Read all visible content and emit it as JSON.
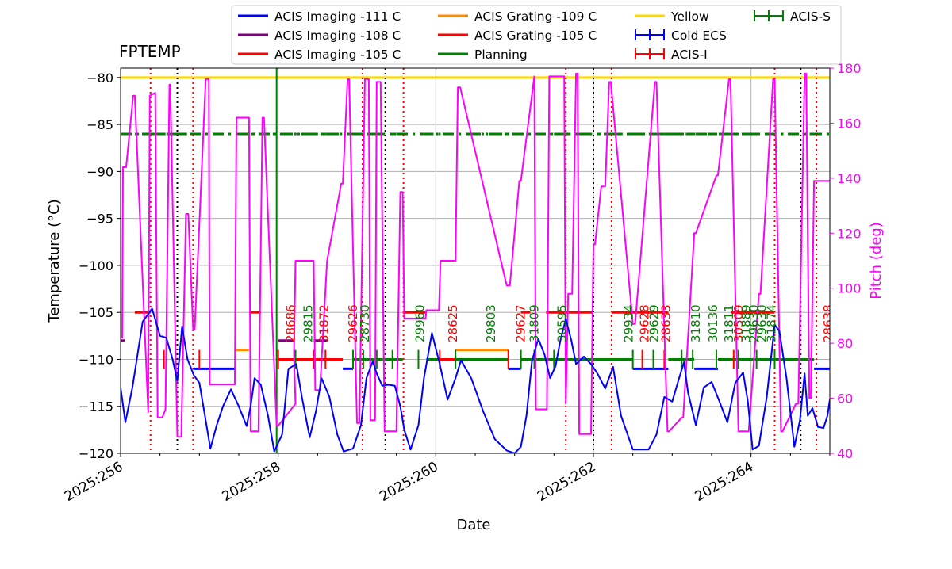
{
  "chart_data": {
    "type": "line",
    "title": "FPTEMP",
    "xlabel": "Date",
    "ylabel": "Temperature ($^\\circ$C)",
    "ylabel_display": "Temperature (°C)",
    "y2label": "Pitch (deg)",
    "xlim": [
      256.0,
      265.0
    ],
    "ylim": [
      -120,
      -79
    ],
    "y2lim": [
      40,
      180
    ],
    "xticks": [
      256,
      258,
      260,
      262,
      264
    ],
    "xtick_labels": [
      "2025:256",
      "2025:258",
      "2025:260",
      "2025:262",
      "2025:264"
    ],
    "yticks": [
      -80,
      -85,
      -90,
      -95,
      -100,
      -105,
      -110,
      -115,
      -120
    ],
    "y2ticks": [
      40,
      60,
      80,
      100,
      120,
      140,
      160,
      180
    ],
    "grid": true,
    "legend_position": "top",
    "colors": {
      "fptemp": "#0000ff",
      "pitch": "#ff00ff",
      "yellow": "#ffd700",
      "planning": "#008000",
      "red": "#ff0000",
      "purple": "#800080",
      "orange": "#ff8c00",
      "now": "#000000"
    },
    "legend": [
      {
        "label": "ACIS Imaging -111 C",
        "color": "#0000ff",
        "kind": "line"
      },
      {
        "label": "ACIS Imaging -108 C",
        "color": "#800080",
        "kind": "line"
      },
      {
        "label": "ACIS Imaging -105 C",
        "color": "#ff0000",
        "kind": "line"
      },
      {
        "label": "ACIS Grating -109 C",
        "color": "#ff8c00",
        "kind": "line"
      },
      {
        "label": "ACIS Grating -105 C",
        "color": "#ff0000",
        "kind": "line"
      },
      {
        "label": "Planning",
        "color": "#008000",
        "kind": "line"
      },
      {
        "label": "Yellow",
        "color": "#ffd700",
        "kind": "line"
      },
      {
        "label": "Cold ECS",
        "color": "#0000ff",
        "kind": "errorbar"
      },
      {
        "label": "ACIS-I",
        "color": "#ff0000",
        "kind": "errorbar"
      },
      {
        "label": "ACIS-S",
        "color": "#008000",
        "kind": "errorbar"
      }
    ],
    "series": [
      {
        "name": "FPTEMP",
        "axis": "left",
        "color": "#0000ff",
        "x": [
          256.0,
          256.06,
          256.15,
          256.28,
          256.4,
          256.5,
          256.58,
          256.66,
          256.72,
          256.78,
          256.85,
          256.93,
          257.0,
          257.07,
          257.14,
          257.22,
          257.3,
          257.4,
          257.5,
          257.6,
          257.65,
          257.7,
          257.78,
          257.87,
          257.95,
          258.05,
          258.13,
          258.23,
          258.3,
          258.4,
          258.48,
          258.55,
          258.65,
          258.75,
          258.83,
          258.95,
          259.05,
          259.12,
          259.2,
          259.25,
          259.32,
          259.4,
          259.48,
          259.55,
          259.6,
          259.68,
          259.78,
          259.85,
          259.95,
          260.05,
          260.15,
          260.25,
          260.32,
          260.45,
          260.6,
          260.75,
          260.9,
          261.0,
          261.08,
          261.15,
          261.22,
          261.3,
          261.38,
          261.45,
          261.52,
          261.58,
          261.65,
          261.72,
          261.78,
          261.88,
          261.97,
          262.05,
          262.15,
          262.25,
          262.35,
          262.5,
          262.6,
          262.7,
          262.8,
          262.9,
          263.0,
          263.08,
          263.15,
          263.2,
          263.3,
          263.4,
          263.5,
          263.6,
          263.7,
          263.8,
          263.9,
          263.96,
          264.02,
          264.1,
          264.2,
          264.3,
          264.36,
          264.45,
          264.55,
          264.62,
          264.68,
          264.72,
          264.78,
          264.85,
          264.92,
          264.97,
          265.0
        ],
        "y": [
          -113,
          -116.7,
          -113,
          -106,
          -104.6,
          -107.5,
          -107.7,
          -110,
          -112.3,
          -106.5,
          -110,
          -111.7,
          -112.5,
          -116,
          -119.5,
          -117,
          -115,
          -113.2,
          -115,
          -117.1,
          -115,
          -112,
          -112.7,
          -116,
          -119.8,
          -118,
          -111,
          -110.5,
          -114,
          -118.3,
          -115.5,
          -112,
          -114,
          -118,
          -119.8,
          -119.5,
          -117,
          -112,
          -110.2,
          -111.5,
          -112.8,
          -112.7,
          -112.8,
          -115,
          -117.5,
          -119.6,
          -117,
          -112,
          -107.2,
          -110.5,
          -114.3,
          -112,
          -110.1,
          -112,
          -115.5,
          -118.5,
          -119.7,
          -120,
          -119.3,
          -116,
          -110.2,
          -107.8,
          -109.5,
          -112,
          -110.7,
          -108,
          -105.7,
          -108,
          -110.5,
          -109.7,
          -110.5,
          -111.5,
          -113.1,
          -110.8,
          -116,
          -119.6,
          -119.6,
          -119.6,
          -118,
          -114,
          -114.5,
          -112.2,
          -110.3,
          -113.5,
          -117,
          -113,
          -112.4,
          -114.5,
          -116.7,
          -112.5,
          -111.4,
          -114.5,
          -119.6,
          -119.2,
          -114,
          -106.3,
          -107,
          -112,
          -119.3,
          -116.5,
          -111.5,
          -116,
          -115.2,
          -117.2,
          -117.3,
          -116,
          -114.3
        ]
      },
      {
        "name": "Pitch",
        "axis": "right",
        "color": "#ff00ff",
        "x": [
          256.0,
          256.02,
          256.03,
          256.07,
          256.16,
          256.18,
          256.35,
          256.37,
          256.44,
          256.47,
          256.5,
          256.53,
          256.57,
          256.62,
          256.63,
          256.72,
          256.74,
          256.77,
          256.83,
          256.86,
          256.92,
          256.94,
          257.08,
          257.12,
          257.13,
          257.45,
          257.47,
          257.63,
          257.65,
          257.75,
          257.8,
          257.82,
          257.98,
          258.0,
          258.22,
          258.2,
          258.22,
          258.45,
          258.47,
          258.53,
          258.62,
          258.8,
          258.82,
          258.88,
          258.9,
          259.0,
          259.03,
          259.1,
          259.15,
          259.17,
          259.23,
          259.25,
          259.3,
          259.35,
          259.5,
          259.55,
          259.58,
          259.6,
          259.87,
          259.88,
          260.04,
          260.06,
          260.25,
          260.28,
          260.31,
          260.9,
          260.94,
          261.06,
          261.08,
          261.25,
          261.27,
          261.41,
          261.44,
          261.63,
          261.65,
          261.68,
          261.73,
          261.78,
          261.8,
          261.82,
          261.95,
          261.97,
          262.0,
          262.02,
          262.1,
          262.15,
          262.2,
          262.22,
          262.5,
          262.53,
          262.78,
          262.8,
          262.94,
          262.96,
          263.12,
          263.14,
          263.28,
          263.3,
          263.56,
          263.58,
          263.72,
          263.74,
          263.84,
          263.86,
          263.97,
          264.1,
          264.12,
          264.28,
          264.3,
          264.38,
          264.4,
          264.57,
          264.6,
          264.68,
          264.7,
          264.74,
          264.76,
          264.8,
          264.82,
          264.86,
          264.88,
          265.0
        ],
        "y": [
          82,
          82,
          144,
          144,
          170,
          170,
          55,
          170,
          171,
          53,
          53,
          53,
          56,
          174,
          174,
          46,
          46,
          46,
          127,
          127,
          85,
          85,
          176,
          176,
          65,
          65,
          162,
          162,
          48,
          48,
          162,
          162,
          50,
          50,
          58,
          76,
          110,
          110,
          63,
          63,
          110,
          138,
          138,
          176,
          176,
          51,
          51,
          176,
          176,
          52,
          52,
          175,
          175,
          48,
          48,
          135,
          135,
          89,
          89,
          92,
          92,
          110,
          110,
          173,
          173,
          101,
          101,
          139,
          139,
          177,
          56,
          56,
          177,
          177,
          58,
          98,
          98,
          178,
          178,
          47,
          47,
          47,
          116,
          116,
          137,
          137,
          175,
          175,
          87,
          87,
          175,
          175,
          48,
          48,
          53,
          53,
          120,
          120,
          141,
          141,
          176,
          176,
          48,
          48,
          48,
          98,
          98,
          176,
          176,
          48,
          48,
          58,
          58,
          178,
          178,
          60,
          60,
          139,
          139,
          139,
          139,
          139
        ]
      }
    ],
    "horizontal_lines": [
      {
        "name": "yellow-limit",
        "y": -80,
        "color": "#ffd700"
      },
      {
        "name": "planning-limit",
        "y": -86,
        "color": "#008000",
        "style": "dashdot"
      }
    ],
    "vertical_lines": [
      {
        "name": "green-solid",
        "x": 257.98,
        "color": "#008000",
        "style": "solid"
      },
      {
        "name": "black-dotted",
        "x": 256.72,
        "color": "#000000",
        "style": "dotted"
      },
      {
        "name": "black-dotted",
        "x": 259.36,
        "color": "#000000",
        "style": "dotted"
      },
      {
        "name": "black-dotted",
        "x": 262.0,
        "color": "#000000",
        "style": "dotted"
      },
      {
        "name": "black-dotted",
        "x": 264.63,
        "color": "#000000",
        "style": "dotted"
      },
      {
        "name": "red-dotted",
        "x": 256.38,
        "color": "#ff0000",
        "style": "dotted"
      },
      {
        "name": "red-dotted",
        "x": 256.92,
        "color": "#ff0000",
        "style": "dotted"
      },
      {
        "name": "red-dotted",
        "x": 259.07,
        "color": "#ff0000",
        "style": "dotted"
      },
      {
        "name": "red-dotted",
        "x": 259.59,
        "color": "#ff0000",
        "style": "dotted"
      },
      {
        "name": "red-dotted",
        "x": 261.65,
        "color": "#ff0000",
        "style": "dotted"
      },
      {
        "name": "red-dotted",
        "x": 262.23,
        "color": "#ff0000",
        "style": "dotted"
      },
      {
        "name": "red-dotted",
        "x": 264.3,
        "color": "#ff0000",
        "style": "dotted"
      },
      {
        "name": "red-dotted",
        "x": 264.83,
        "color": "#ff0000",
        "style": "dotted"
      }
    ],
    "limit_segments": [
      {
        "x1": 256.0,
        "x2": 256.05,
        "y": -108,
        "color": "#800080"
      },
      {
        "x1": 256.18,
        "x2": 256.38,
        "y": -105,
        "color": "#ff0000"
      },
      {
        "x1": 256.92,
        "x2": 257.45,
        "y": -111,
        "color": "#0000ff"
      },
      {
        "x1": 257.45,
        "x2": 257.63,
        "y": -109,
        "color": "#ff8c00"
      },
      {
        "x1": 257.63,
        "x2": 257.78,
        "y": -105,
        "color": "#ff0000"
      },
      {
        "x1": 258.0,
        "x2": 258.2,
        "y": -108,
        "color": "#800080"
      },
      {
        "x1": 258.0,
        "x2": 258.45,
        "y": -110,
        "color": "#ff0000"
      },
      {
        "x1": 258.45,
        "x2": 258.62,
        "y": -108,
        "color": "#800080"
      },
      {
        "x1": 258.45,
        "x2": 258.82,
        "y": -110,
        "color": "#ff0000"
      },
      {
        "x1": 258.82,
        "x2": 258.95,
        "y": -111,
        "color": "#0000ff"
      },
      {
        "x1": 258.95,
        "x2": 259.58,
        "y": -110,
        "color": "#008000"
      },
      {
        "x1": 259.58,
        "x2": 259.88,
        "y": -105,
        "color": "#ff0000"
      },
      {
        "x1": 259.88,
        "x2": 260.05,
        "y": -110,
        "color": "#008000"
      },
      {
        "x1": 260.05,
        "x2": 260.25,
        "y": -110,
        "color": "#ff0000"
      },
      {
        "x1": 260.25,
        "x2": 260.92,
        "y": -109,
        "color": "#ff8c00"
      },
      {
        "x1": 260.25,
        "x2": 260.92,
        "y": -110,
        "color": "#008000"
      },
      {
        "x1": 260.92,
        "x2": 261.08,
        "y": -111,
        "color": "#0000ff"
      },
      {
        "x1": 261.08,
        "x2": 261.4,
        "y": -110,
        "color": "#008000"
      },
      {
        "x1": 261.08,
        "x2": 261.2,
        "y": -105,
        "color": "#ff0000"
      },
      {
        "x1": 261.4,
        "x2": 262.0,
        "y": -105,
        "color": "#ff0000"
      },
      {
        "x1": 261.4,
        "x2": 262.0,
        "y": -110,
        "color": "#008000"
      },
      {
        "x1": 262.0,
        "x2": 262.5,
        "y": -110,
        "color": "#008000"
      },
      {
        "x1": 262.23,
        "x2": 262.95,
        "y": -105,
        "color": "#ff0000"
      },
      {
        "x1": 262.5,
        "x2": 262.95,
        "y": -111,
        "color": "#0000ff"
      },
      {
        "x1": 262.95,
        "x2": 263.28,
        "y": -110,
        "color": "#008000"
      },
      {
        "x1": 263.28,
        "x2": 263.58,
        "y": -111,
        "color": "#0000ff"
      },
      {
        "x1": 263.58,
        "x2": 264.05,
        "y": -110,
        "color": "#008000"
      },
      {
        "x1": 263.75,
        "x2": 264.3,
        "y": -105,
        "color": "#ff0000"
      },
      {
        "x1": 264.05,
        "x2": 264.8,
        "y": -110,
        "color": "#008000"
      },
      {
        "x1": 264.8,
        "x2": 265.0,
        "y": -111,
        "color": "#0000ff"
      }
    ],
    "planning_dashdot": [
      {
        "x1": 256.0,
        "x2": 256.45
      },
      {
        "x1": 256.45,
        "x2": 256.95
      },
      {
        "x1": 257.5,
        "x2": 257.75
      },
      {
        "x1": 257.75,
        "x2": 258.6
      },
      {
        "x1": 258.6,
        "x2": 259.5
      },
      {
        "x1": 259.85,
        "x2": 260.15
      },
      {
        "x1": 260.45,
        "x2": 261.5
      },
      {
        "x1": 261.5,
        "x2": 262.1
      },
      {
        "x1": 262.25,
        "x2": 262.9
      },
      {
        "x1": 262.9,
        "x2": 263.3
      },
      {
        "x1": 263.45,
        "x2": 264.2
      },
      {
        "x1": 264.2,
        "x2": 264.85
      }
    ],
    "obsid_ticks": [
      {
        "x": 256.55,
        "color": "#ff0000"
      },
      {
        "x": 257.0,
        "color": "#ff0000"
      },
      {
        "x": 258.0,
        "color": "#ff0000"
      },
      {
        "x": 258.22,
        "color": "#008000"
      },
      {
        "x": 258.45,
        "color": "#ff0000"
      },
      {
        "x": 258.6,
        "color": "#ff0000"
      },
      {
        "x": 258.95,
        "color": "#008000"
      },
      {
        "x": 259.08,
        "color": "#008000"
      },
      {
        "x": 259.25,
        "color": "#008000"
      },
      {
        "x": 259.45,
        "color": "#008000"
      },
      {
        "x": 259.78,
        "color": "#008000"
      },
      {
        "x": 260.05,
        "color": "#ff0000"
      },
      {
        "x": 260.25,
        "color": "#008000"
      },
      {
        "x": 260.92,
        "color": "#ff0000"
      },
      {
        "x": 261.08,
        "color": "#008000"
      },
      {
        "x": 261.25,
        "color": "#008000"
      },
      {
        "x": 261.5,
        "color": "#008000"
      },
      {
        "x": 262.5,
        "color": "#008000"
      },
      {
        "x": 262.62,
        "color": "#ff0000"
      },
      {
        "x": 262.76,
        "color": "#008000"
      },
      {
        "x": 262.9,
        "color": "#ff0000"
      },
      {
        "x": 263.12,
        "color": "#008000"
      },
      {
        "x": 263.26,
        "color": "#008000"
      },
      {
        "x": 263.56,
        "color": "#008000"
      },
      {
        "x": 263.78,
        "color": "#ff0000"
      },
      {
        "x": 263.84,
        "color": "#008000"
      },
      {
        "x": 264.07,
        "color": "#008000"
      },
      {
        "x": 264.3,
        "color": "#008000"
      }
    ],
    "obsid_labels": [
      {
        "text": "28686",
        "x": 258.16,
        "color": "#ff0000"
      },
      {
        "text": "29815",
        "x": 258.38,
        "color": "#008000"
      },
      {
        "text": "31872",
        "x": 258.58,
        "color": "#ff0000"
      },
      {
        "text": "29626",
        "x": 258.95,
        "color": "#ff0000"
      },
      {
        "text": "28730",
        "x": 259.1,
        "color": "#008000"
      },
      {
        "text": "29960",
        "x": 259.8,
        "color": "#008000"
      },
      {
        "text": "28625",
        "x": 260.22,
        "color": "#ff0000"
      },
      {
        "text": "29803",
        "x": 260.7,
        "color": "#008000"
      },
      {
        "text": "29627",
        "x": 261.08,
        "color": "#ff0000"
      },
      {
        "text": "31809",
        "x": 261.25,
        "color": "#008000"
      },
      {
        "text": "30595",
        "x": 261.6,
        "color": "#008000"
      },
      {
        "text": "29934",
        "x": 262.45,
        "color": "#008000"
      },
      {
        "text": "29628",
        "x": 262.65,
        "color": "#ff0000"
      },
      {
        "text": "29629",
        "x": 262.77,
        "color": "#008000"
      },
      {
        "text": "28633",
        "x": 262.92,
        "color": "#ff0000"
      },
      {
        "text": "31810",
        "x": 263.3,
        "color": "#008000"
      },
      {
        "text": "30136",
        "x": 263.52,
        "color": "#008000"
      },
      {
        "text": "31811",
        "x": 263.72,
        "color": "#008000"
      },
      {
        "text": "30509",
        "x": 263.84,
        "color": "#ff0000"
      },
      {
        "text": "31889",
        "x": 263.94,
        "color": "#008000"
      },
      {
        "text": "29630",
        "x": 264.04,
        "color": "#008000"
      },
      {
        "text": "29630",
        "x": 264.14,
        "color": "#008000"
      },
      {
        "text": "31874",
        "x": 264.26,
        "color": "#008000"
      },
      {
        "text": "28638",
        "x": 264.98,
        "color": "#ff0000"
      }
    ]
  }
}
